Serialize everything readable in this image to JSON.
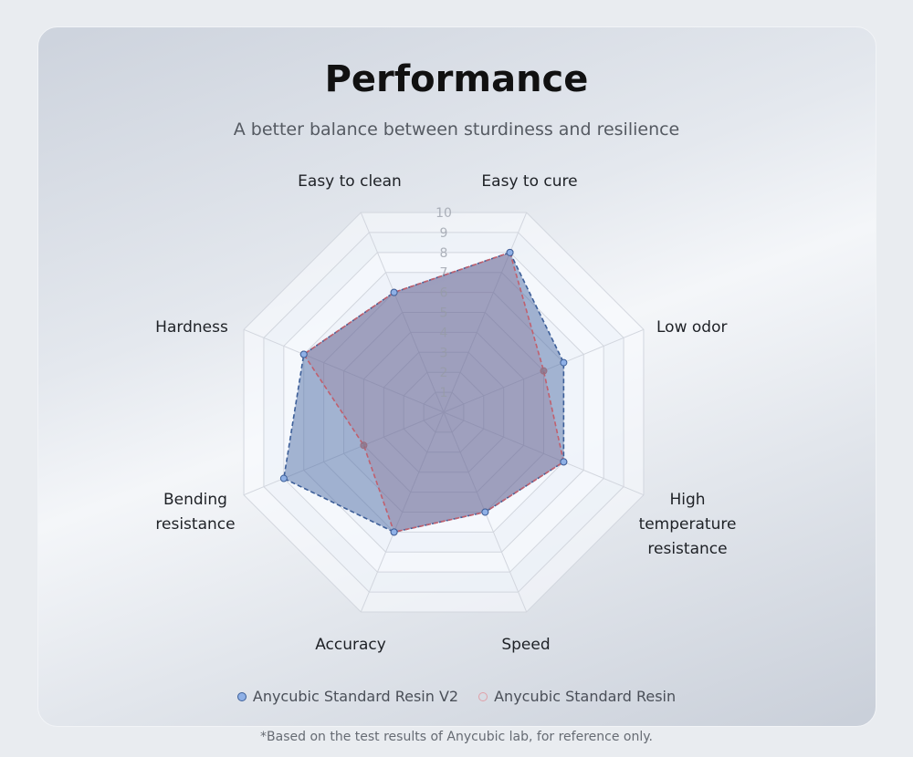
{
  "header": {
    "title": "Performance",
    "subtitle": "A better balance between sturdiness and resilience"
  },
  "chart_data": {
    "type": "radar",
    "title": "Performance",
    "categories": [
      "Easy to cure",
      "Low odor",
      "High\ntemperature\nresistance",
      "Speed",
      "Accuracy",
      "Bending\nresistance",
      "Hardness",
      "Easy to clean"
    ],
    "rlim": [
      0,
      10
    ],
    "ticks": [
      "1",
      "2",
      "3",
      "4",
      "5",
      "6",
      "7",
      "8",
      "9",
      "10"
    ],
    "series": [
      {
        "name": "Anycubic Standard Resin V2",
        "values": [
          8,
          6,
          6,
          5,
          6,
          8,
          7,
          6
        ],
        "color": "#3d5f99",
        "marker": "#8fb0e6"
      },
      {
        "name": "Anycubic Standard Resin",
        "values": [
          8,
          5,
          6,
          5,
          6,
          4,
          7,
          6
        ],
        "color": "#c0606e",
        "marker": "#e0a0a8"
      }
    ],
    "legend": "bottom",
    "grid": true
  },
  "footer": {
    "note": "*Based on the test results of Anycubic lab, for reference only."
  }
}
